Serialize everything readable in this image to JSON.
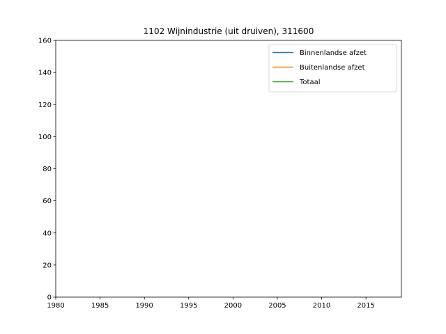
{
  "chart_data": {
    "type": "line",
    "title": "1102 Wijnindustrie (uit druiven), 311600",
    "xlabel": "",
    "ylabel": "",
    "xlim": [
      1980,
      2019
    ],
    "ylim": [
      0,
      160
    ],
    "xticks": [
      1980,
      1985,
      1990,
      1995,
      2000,
      2005,
      2010,
      2015
    ],
    "yticks": [
      0,
      20,
      40,
      60,
      80,
      100,
      120,
      140,
      160
    ],
    "grid": false,
    "legend_position": "top-right",
    "series": [
      {
        "name": "Binnenlandse afzet",
        "color": "#1f77b4",
        "x": [],
        "y": []
      },
      {
        "name": "Buitenlandse afzet",
        "color": "#ff7f0e",
        "x": [],
        "y": []
      },
      {
        "name": "Totaal",
        "color": "#2ca02c",
        "x": [],
        "y": []
      }
    ]
  }
}
